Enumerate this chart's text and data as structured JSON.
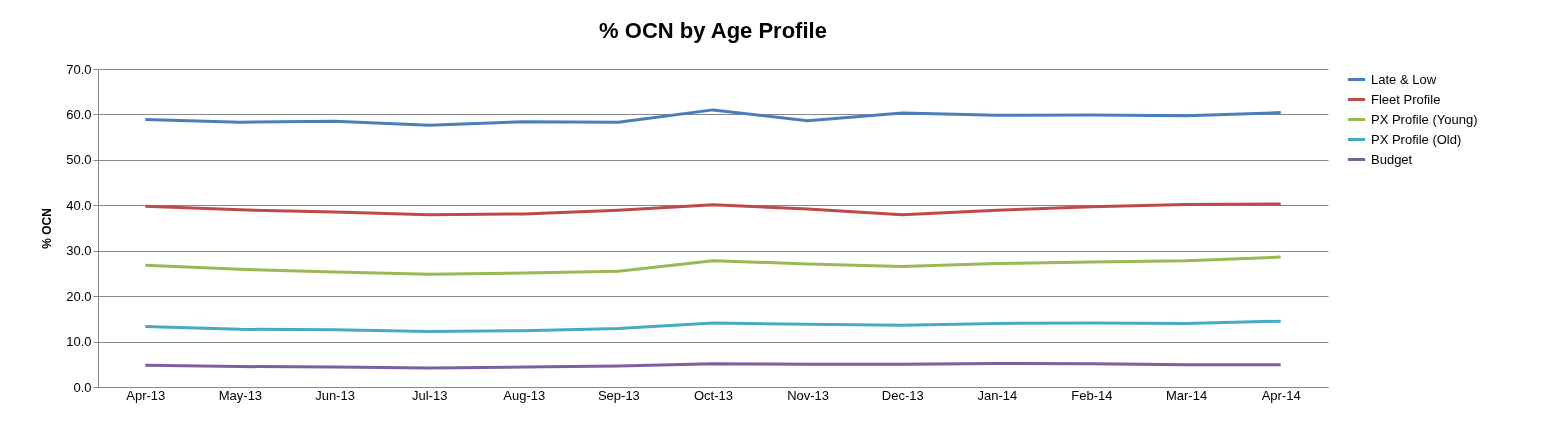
{
  "chart_data": {
    "type": "line",
    "title": "% OCN by Age Profile",
    "ylabel": "% OCN",
    "categories": [
      "Apr-13",
      "May-13",
      "Jun-13",
      "Jul-13",
      "Aug-13",
      "Sep-13",
      "Oct-13",
      "Nov-13",
      "Dec-13",
      "Jan-14",
      "Feb-14",
      "Mar-14",
      "Apr-14"
    ],
    "series": [
      {
        "name": "Late & Low",
        "color": "#4a7ebb",
        "values": [
          58.9,
          58.3,
          58.5,
          57.6,
          58.4,
          58.3,
          61.0,
          58.6,
          60.3,
          59.8,
          59.9,
          59.7,
          60.4
        ]
      },
      {
        "name": "Fleet Profile",
        "color": "#be4b48",
        "values": [
          39.8,
          39.0,
          38.5,
          37.9,
          38.1,
          38.9,
          40.1,
          39.2,
          37.9,
          38.9,
          39.7,
          40.2,
          40.3
        ]
      },
      {
        "name": "PX Profile (Young)",
        "color": "#98b954",
        "values": [
          26.8,
          25.9,
          25.3,
          24.8,
          25.1,
          25.5,
          27.8,
          27.1,
          26.5,
          27.2,
          27.5,
          27.8,
          28.6
        ]
      },
      {
        "name": "PX Profile (Old)",
        "color": "#46aac5",
        "values": [
          13.3,
          12.7,
          12.6,
          12.2,
          12.4,
          12.9,
          14.1,
          13.8,
          13.6,
          14.0,
          14.1,
          14.0,
          14.5
        ]
      },
      {
        "name": "Budget",
        "color": "#7d5fa0",
        "values": [
          4.8,
          4.5,
          4.4,
          4.2,
          4.4,
          4.6,
          5.1,
          5.0,
          5.0,
          5.2,
          5.1,
          4.9,
          4.9
        ]
      }
    ],
    "ylim": [
      0,
      70
    ],
    "yticks": [
      {
        "value": 0,
        "label": "0.0"
      },
      {
        "value": 10,
        "label": "10.0"
      },
      {
        "value": 20,
        "label": "20.0"
      },
      {
        "value": 30,
        "label": "30.0"
      },
      {
        "value": 40,
        "label": "40.0"
      },
      {
        "value": 50,
        "label": "50.0"
      },
      {
        "value": 60,
        "label": "60.0"
      },
      {
        "value": 70,
        "label": "70.0"
      }
    ],
    "grid": "y",
    "legend": "right",
    "marker": "none",
    "line_style": "solid"
  }
}
